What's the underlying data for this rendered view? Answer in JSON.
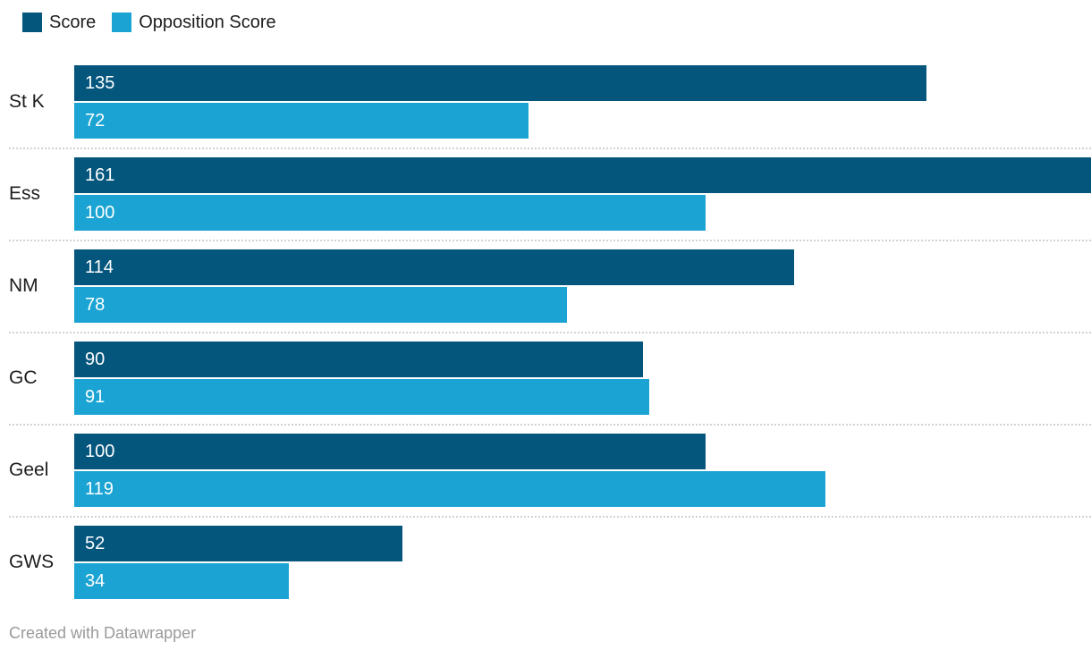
{
  "legend": {
    "items": [
      {
        "label": "Score",
        "color": "#05567d"
      },
      {
        "label": "Opposition Score",
        "color": "#1ba4d3"
      }
    ]
  },
  "chart_data": {
    "type": "bar",
    "orientation": "horizontal",
    "title": "",
    "categories": [
      "St K",
      "Ess",
      "NM",
      "GC",
      "Geel",
      "GWS"
    ],
    "series": [
      {
        "name": "Score",
        "color": "#05567d",
        "values": [
          135,
          161,
          114,
          90,
          100,
          52
        ]
      },
      {
        "name": "Opposition Score",
        "color": "#1ba4d3",
        "values": [
          72,
          100,
          78,
          91,
          119,
          34
        ]
      }
    ],
    "xlim": [
      0,
      161
    ],
    "value_labels": "inside-left",
    "legend_position": "top-left",
    "grid": "dotted-row-separators",
    "separator_color": "#d2d2d2",
    "value_label_color": "#ffffff"
  },
  "footer": {
    "text": "Created with Datawrapper"
  }
}
